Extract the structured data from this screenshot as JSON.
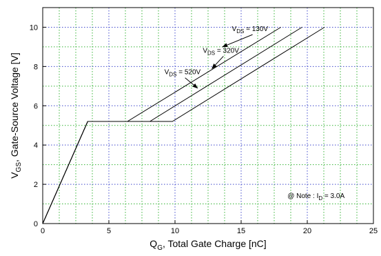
{
  "chart_data": {
    "type": "line",
    "title": "",
    "xlabel": {
      "main": "Q",
      "sub": "G",
      "rest": ", Total Gate Charge [nC]"
    },
    "ylabel": {
      "main": "V",
      "sub": "GS",
      "rest": ", Gate-Source Voltage [V]"
    },
    "xlim": [
      0,
      25
    ],
    "ylim": [
      0,
      11
    ],
    "x_major_ticks": [
      0,
      5,
      10,
      15,
      20,
      25
    ],
    "y_major_ticks": [
      0,
      2,
      4,
      6,
      8,
      10
    ],
    "x_minor_step": 1.25,
    "y_minor_step": 1,
    "grid": true,
    "grid_color": "#3f48cc",
    "minor_grid_color": "#35b335",
    "line_color": "#000000",
    "series": [
      {
        "label": {
          "main": "V",
          "sub": "DS",
          "rest": " = 130V"
        },
        "points": [
          [
            0,
            0
          ],
          [
            3.4,
            5.2
          ],
          [
            6.4,
            5.2
          ],
          [
            18.0,
            10.0
          ]
        ],
        "label_anchor": [
          14.3,
          9.8
        ],
        "arrow_tip": [
          13.6,
          9.0
        ]
      },
      {
        "label": {
          "main": "V",
          "sub": "DS",
          "rest": " = 320V"
        },
        "points": [
          [
            0,
            0
          ],
          [
            3.4,
            5.2
          ],
          [
            8.1,
            5.2
          ],
          [
            19.6,
            10.0
          ]
        ],
        "label_anchor": [
          12.1,
          8.7
        ],
        "arrow_tip": [
          12.8,
          7.9
        ]
      },
      {
        "label": {
          "main": "V",
          "sub": "DS",
          "rest": " = 520V"
        },
        "points": [
          [
            0,
            0
          ],
          [
            3.4,
            5.2
          ],
          [
            9.8,
            5.2
          ],
          [
            21.3,
            10.0
          ]
        ],
        "label_anchor": [
          9.2,
          7.6
        ],
        "arrow_tip": [
          11.7,
          6.9
        ]
      }
    ],
    "annotations": [
      {
        "text_prefix": "@ Note : I",
        "sub": "D",
        "text_suffix": " = 3.0A",
        "anchor": [
          18.5,
          1.3
        ]
      }
    ]
  }
}
